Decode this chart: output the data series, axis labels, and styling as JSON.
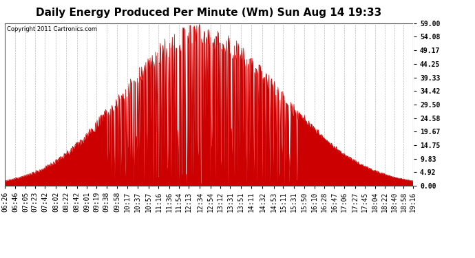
{
  "title": "Daily Energy Produced Per Minute (Wm) Sun Aug 14 19:33",
  "copyright": "Copyright 2011 Cartronics.com",
  "background_color": "#ffffff",
  "line_color": "#cc0000",
  "fill_color": "#cc0000",
  "grid_color": "#bbbbbb",
  "title_fontsize": 11,
  "tick_fontsize": 7,
  "ymin": 0.0,
  "ymax": 59.0,
  "yticks": [
    0.0,
    4.92,
    9.83,
    14.75,
    19.67,
    24.58,
    29.5,
    34.42,
    39.33,
    44.25,
    49.17,
    54.08,
    59.0
  ],
  "ytick_labels": [
    "0.00",
    "4.92",
    "9.83",
    "14.75",
    "19.67",
    "24.58",
    "29.50",
    "34.42",
    "39.33",
    "44.25",
    "49.17",
    "54.08",
    "59.00"
  ],
  "xtick_labels": [
    "06:26",
    "06:46",
    "07:05",
    "07:23",
    "07:42",
    "08:02",
    "08:22",
    "08:42",
    "09:01",
    "09:19",
    "09:38",
    "09:58",
    "10:17",
    "10:37",
    "10:57",
    "11:16",
    "11:36",
    "11:54",
    "12:13",
    "12:34",
    "12:54",
    "13:12",
    "13:31",
    "13:51",
    "14:11",
    "14:32",
    "14:53",
    "15:11",
    "15:31",
    "15:50",
    "16:10",
    "16:28",
    "16:47",
    "17:06",
    "17:27",
    "17:45",
    "18:04",
    "18:22",
    "18:40",
    "18:58",
    "19:16"
  ]
}
